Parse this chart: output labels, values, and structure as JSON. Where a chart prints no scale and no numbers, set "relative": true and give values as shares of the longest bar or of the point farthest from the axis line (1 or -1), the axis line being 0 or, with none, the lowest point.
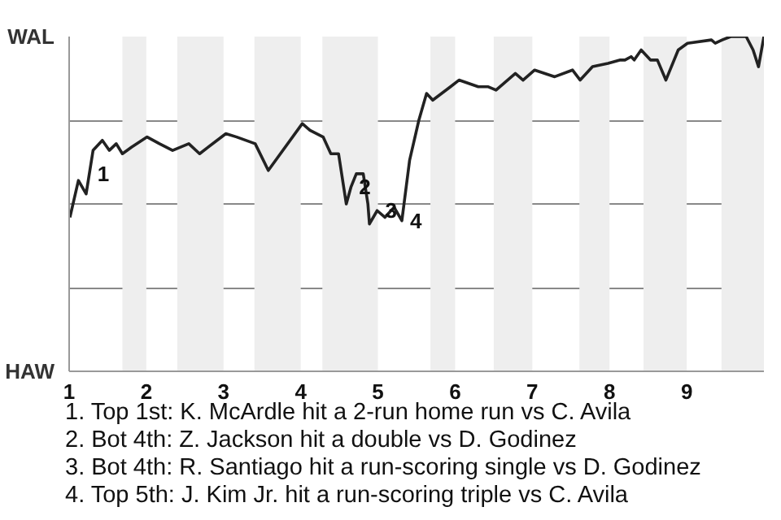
{
  "chart_data": {
    "type": "line",
    "relative": true,
    "x": [
      1.01,
      1.12,
      1.22,
      1.31,
      1.43,
      1.52,
      1.61,
      1.69,
      1.81,
      2.01,
      2.17,
      2.34,
      2.55,
      2.69,
      3.03,
      3.17,
      3.41,
      3.58,
      4.02,
      4.12,
      4.29,
      4.39,
      4.49,
      4.59,
      4.65,
      4.72,
      4.81,
      4.87,
      4.89,
      4.99,
      5.09,
      5.21,
      5.31,
      5.41,
      5.53,
      5.63,
      5.71,
      5.94,
      6.05,
      6.3,
      6.43,
      6.53,
      6.78,
      6.88,
      7.03,
      7.29,
      7.52,
      7.62,
      7.78,
      7.98,
      8.14,
      8.2,
      8.28,
      8.32,
      8.41,
      8.53,
      8.62,
      8.73,
      8.89,
      9.01,
      9.32,
      9.37,
      9.46,
      9.57,
      9.77,
      9.86,
      9.93,
      10.0
    ],
    "series": [
      {
        "color": "#222222",
        "values": [
          0.46,
          0.57,
          0.53,
          0.66,
          0.69,
          0.66,
          0.68,
          0.65,
          0.67,
          0.7,
          0.68,
          0.66,
          0.68,
          0.65,
          0.71,
          0.7,
          0.68,
          0.6,
          0.74,
          0.72,
          0.7,
          0.65,
          0.65,
          0.5,
          0.55,
          0.59,
          0.59,
          0.5,
          0.44,
          0.48,
          0.46,
          0.49,
          0.45,
          0.63,
          0.75,
          0.83,
          0.81,
          0.85,
          0.87,
          0.85,
          0.85,
          0.84,
          0.89,
          0.87,
          0.9,
          0.88,
          0.9,
          0.87,
          0.91,
          0.92,
          0.93,
          0.93,
          0.94,
          0.93,
          0.96,
          0.93,
          0.93,
          0.87,
          0.96,
          0.98,
          0.99,
          0.98,
          0.99,
          1.0,
          1.0,
          0.96,
          0.91,
          1.0
        ]
      }
    ],
    "xlim": [
      1,
      10
    ],
    "xticks": [
      1,
      2,
      3,
      4,
      5,
      6,
      7,
      8,
      9
    ],
    "grid": "y",
    "bands": [
      {
        "axis": "x",
        "from": 1.69,
        "to": 2.0,
        "color": "#eeeeee"
      },
      {
        "axis": "x",
        "from": 2.4,
        "to": 3.0,
        "color": "#eeeeee"
      },
      {
        "axis": "x",
        "from": 3.4,
        "to": 4.0,
        "color": "#eeeeee"
      },
      {
        "axis": "x",
        "from": 4.28,
        "to": 5.0,
        "color": "#eeeeee"
      },
      {
        "axis": "x",
        "from": 5.68,
        "to": 6.0,
        "color": "#eeeeee"
      },
      {
        "axis": "x",
        "from": 6.5,
        "to": 7.0,
        "color": "#eeeeee"
      },
      {
        "axis": "x",
        "from": 7.61,
        "to": 8.0,
        "color": "#eeeeee"
      },
      {
        "axis": "x",
        "from": 8.44,
        "to": 9.0,
        "color": "#eeeeee"
      },
      {
        "axis": "x",
        "from": 9.45,
        "to": 10.0,
        "color": "#eeeeee"
      }
    ],
    "annotations": [
      "WAL",
      "HAW",
      {
        "text": "1",
        "x": 1.26,
        "y": 0.59
      },
      {
        "text": "2",
        "x": 4.65,
        "y": 0.55
      },
      {
        "text": "3",
        "x": 4.99,
        "y": 0.48
      },
      {
        "text": "4",
        "x": 5.31,
        "y": 0.45
      },
      "1. Top 1st: K. McArdle hit a 2-run home run vs C. Avila",
      "2. Bot 4th: Z. Jackson hit a double vs D. Godinez",
      "3. Bot 4th: R. Santiago hit a run-scoring single vs D. Godinez",
      "4. Top 5th: J. Kim Jr. hit a run-scoring triple vs C. Avila"
    ]
  }
}
